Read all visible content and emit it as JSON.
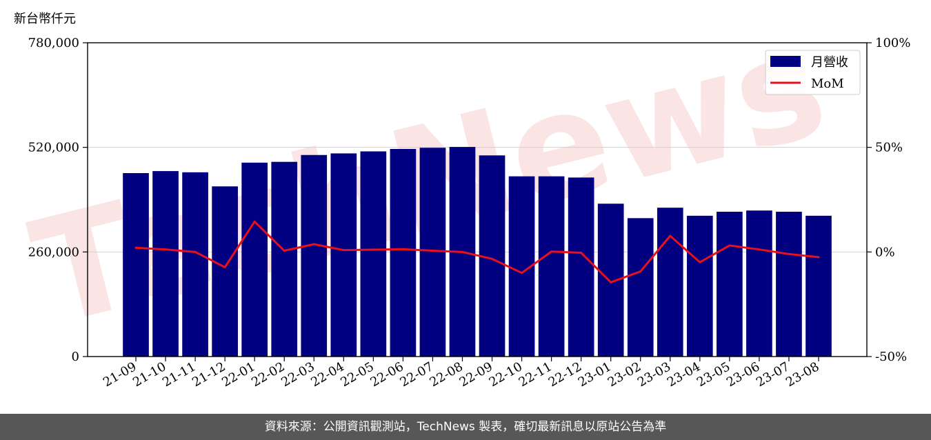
{
  "unit_label": "新台幣仟元",
  "watermark": "TechNews",
  "footer": "資料來源：公開資訊觀測站，TechNews 製表，確切最新訊息以原站公告為準",
  "colors": {
    "bar": "#000080",
    "line": "#e8101b",
    "watermark": "#f5c5c5",
    "footer_bg": "#575757"
  },
  "chart_data": {
    "type": "bar",
    "categories": [
      "21-09",
      "21-10",
      "21-11",
      "21-12",
      "22-01",
      "22-02",
      "22-03",
      "22-04",
      "22-05",
      "22-06",
      "22-07",
      "22-08",
      "22-09",
      "22-10",
      "22-11",
      "22-12",
      "23-01",
      "23-02",
      "23-03",
      "23-04",
      "23-05",
      "23-06",
      "23-07",
      "23-08"
    ],
    "series": [
      {
        "name": "月營收",
        "type": "bar",
        "axis": "left",
        "values": [
          456000,
          461000,
          458000,
          423000,
          482000,
          484000,
          501000,
          505000,
          510000,
          516000,
          519000,
          521000,
          500000,
          448000,
          448000,
          445000,
          380000,
          344000,
          370000,
          350000,
          360000,
          363000,
          360000,
          350000
        ]
      },
      {
        "name": "MoM",
        "type": "line",
        "axis": "right",
        "values": [
          2.0,
          1.2,
          0.0,
          -7.3,
          14.5,
          0.6,
          3.7,
          0.9,
          1.1,
          1.3,
          0.6,
          0.0,
          -3.3,
          -10.0,
          0.2,
          -0.4,
          -14.5,
          -9.3,
          7.7,
          -4.9,
          3.1,
          1.2,
          -1.0,
          -2.5
        ]
      }
    ],
    "y_left": {
      "ylim": [
        0,
        780000
      ],
      "ticks": [
        0,
        260000,
        520000,
        780000
      ],
      "tick_labels": [
        "0",
        "260,000",
        "520,000",
        "780,000"
      ]
    },
    "y_right": {
      "ylim": [
        -50,
        100
      ],
      "ticks": [
        -50,
        0,
        50,
        100
      ],
      "tick_labels": [
        "-50%",
        "0%",
        "50%",
        "100%"
      ]
    },
    "grid": "horizontal",
    "legend_position": "top-right"
  }
}
